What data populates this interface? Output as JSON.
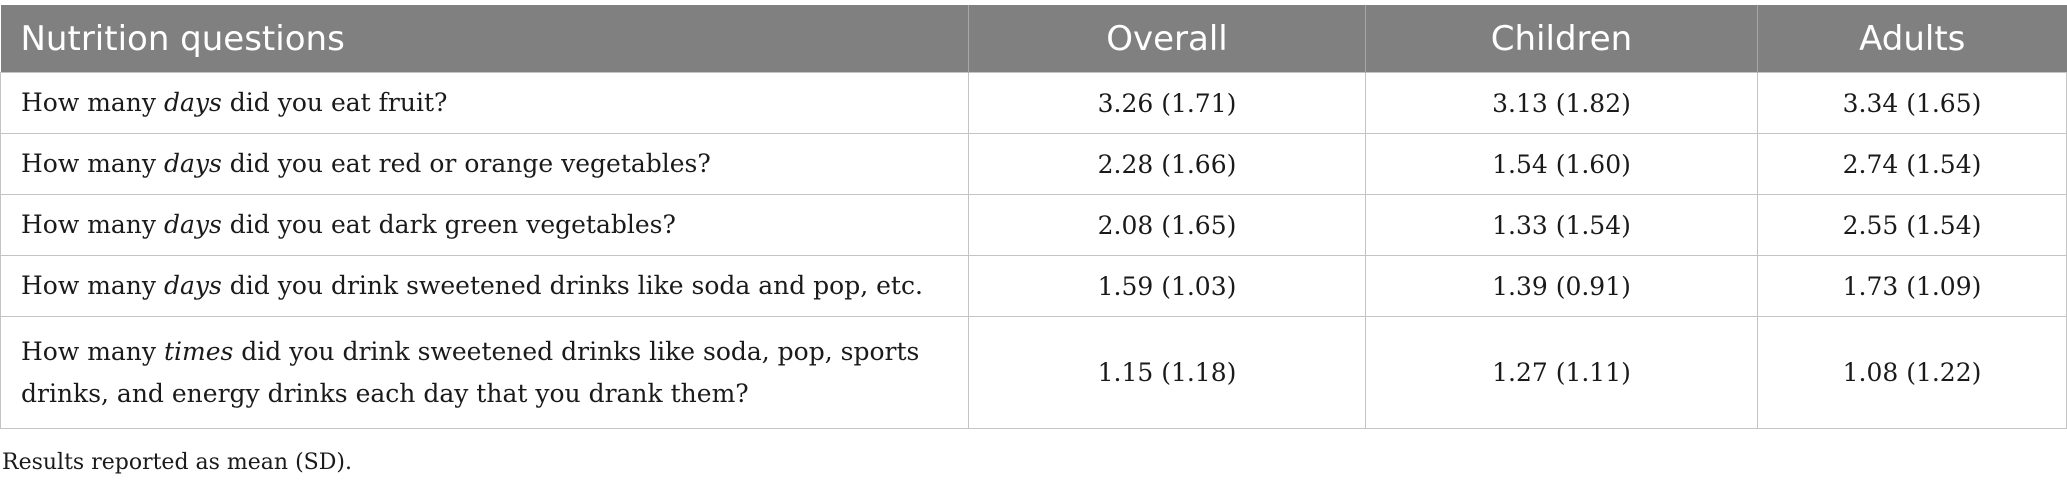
{
  "table": {
    "headers": [
      "Nutrition questions",
      "Overall",
      "Children",
      "Adults"
    ],
    "rows": [
      {
        "question": {
          "pre": "How many ",
          "em": "days",
          "post": " did you eat fruit?"
        },
        "overall": "3.26 (1.71)",
        "children": "3.13 (1.82)",
        "adults": "3.34 (1.65)"
      },
      {
        "question": {
          "pre": "How many ",
          "em": "days",
          "post": " did you eat red or orange vegetables?"
        },
        "overall": "2.28 (1.66)",
        "children": "1.54 (1.60)",
        "adults": "2.74 (1.54)"
      },
      {
        "question": {
          "pre": "How many ",
          "em": "days",
          "post": " did you eat dark green vegetables?"
        },
        "overall": "2.08 (1.65)",
        "children": "1.33 (1.54)",
        "adults": "2.55 (1.54)"
      },
      {
        "question": {
          "pre": "How many ",
          "em": "days",
          "post": " did you drink sweetened drinks like soda and pop, etc."
        },
        "overall": "1.59 (1.03)",
        "children": "1.39 (0.91)",
        "adults": "1.73 (1.09)"
      },
      {
        "question": {
          "pre": "How many ",
          "em": "times",
          "post": " did you drink sweetened drinks like soda, pop, sports drinks, and energy drinks each day that you drank them?"
        },
        "overall": "1.15 (1.18)",
        "children": "1.27 (1.11)",
        "adults": "1.08 (1.22)"
      }
    ]
  },
  "footnote": "Results reported as mean (SD)."
}
